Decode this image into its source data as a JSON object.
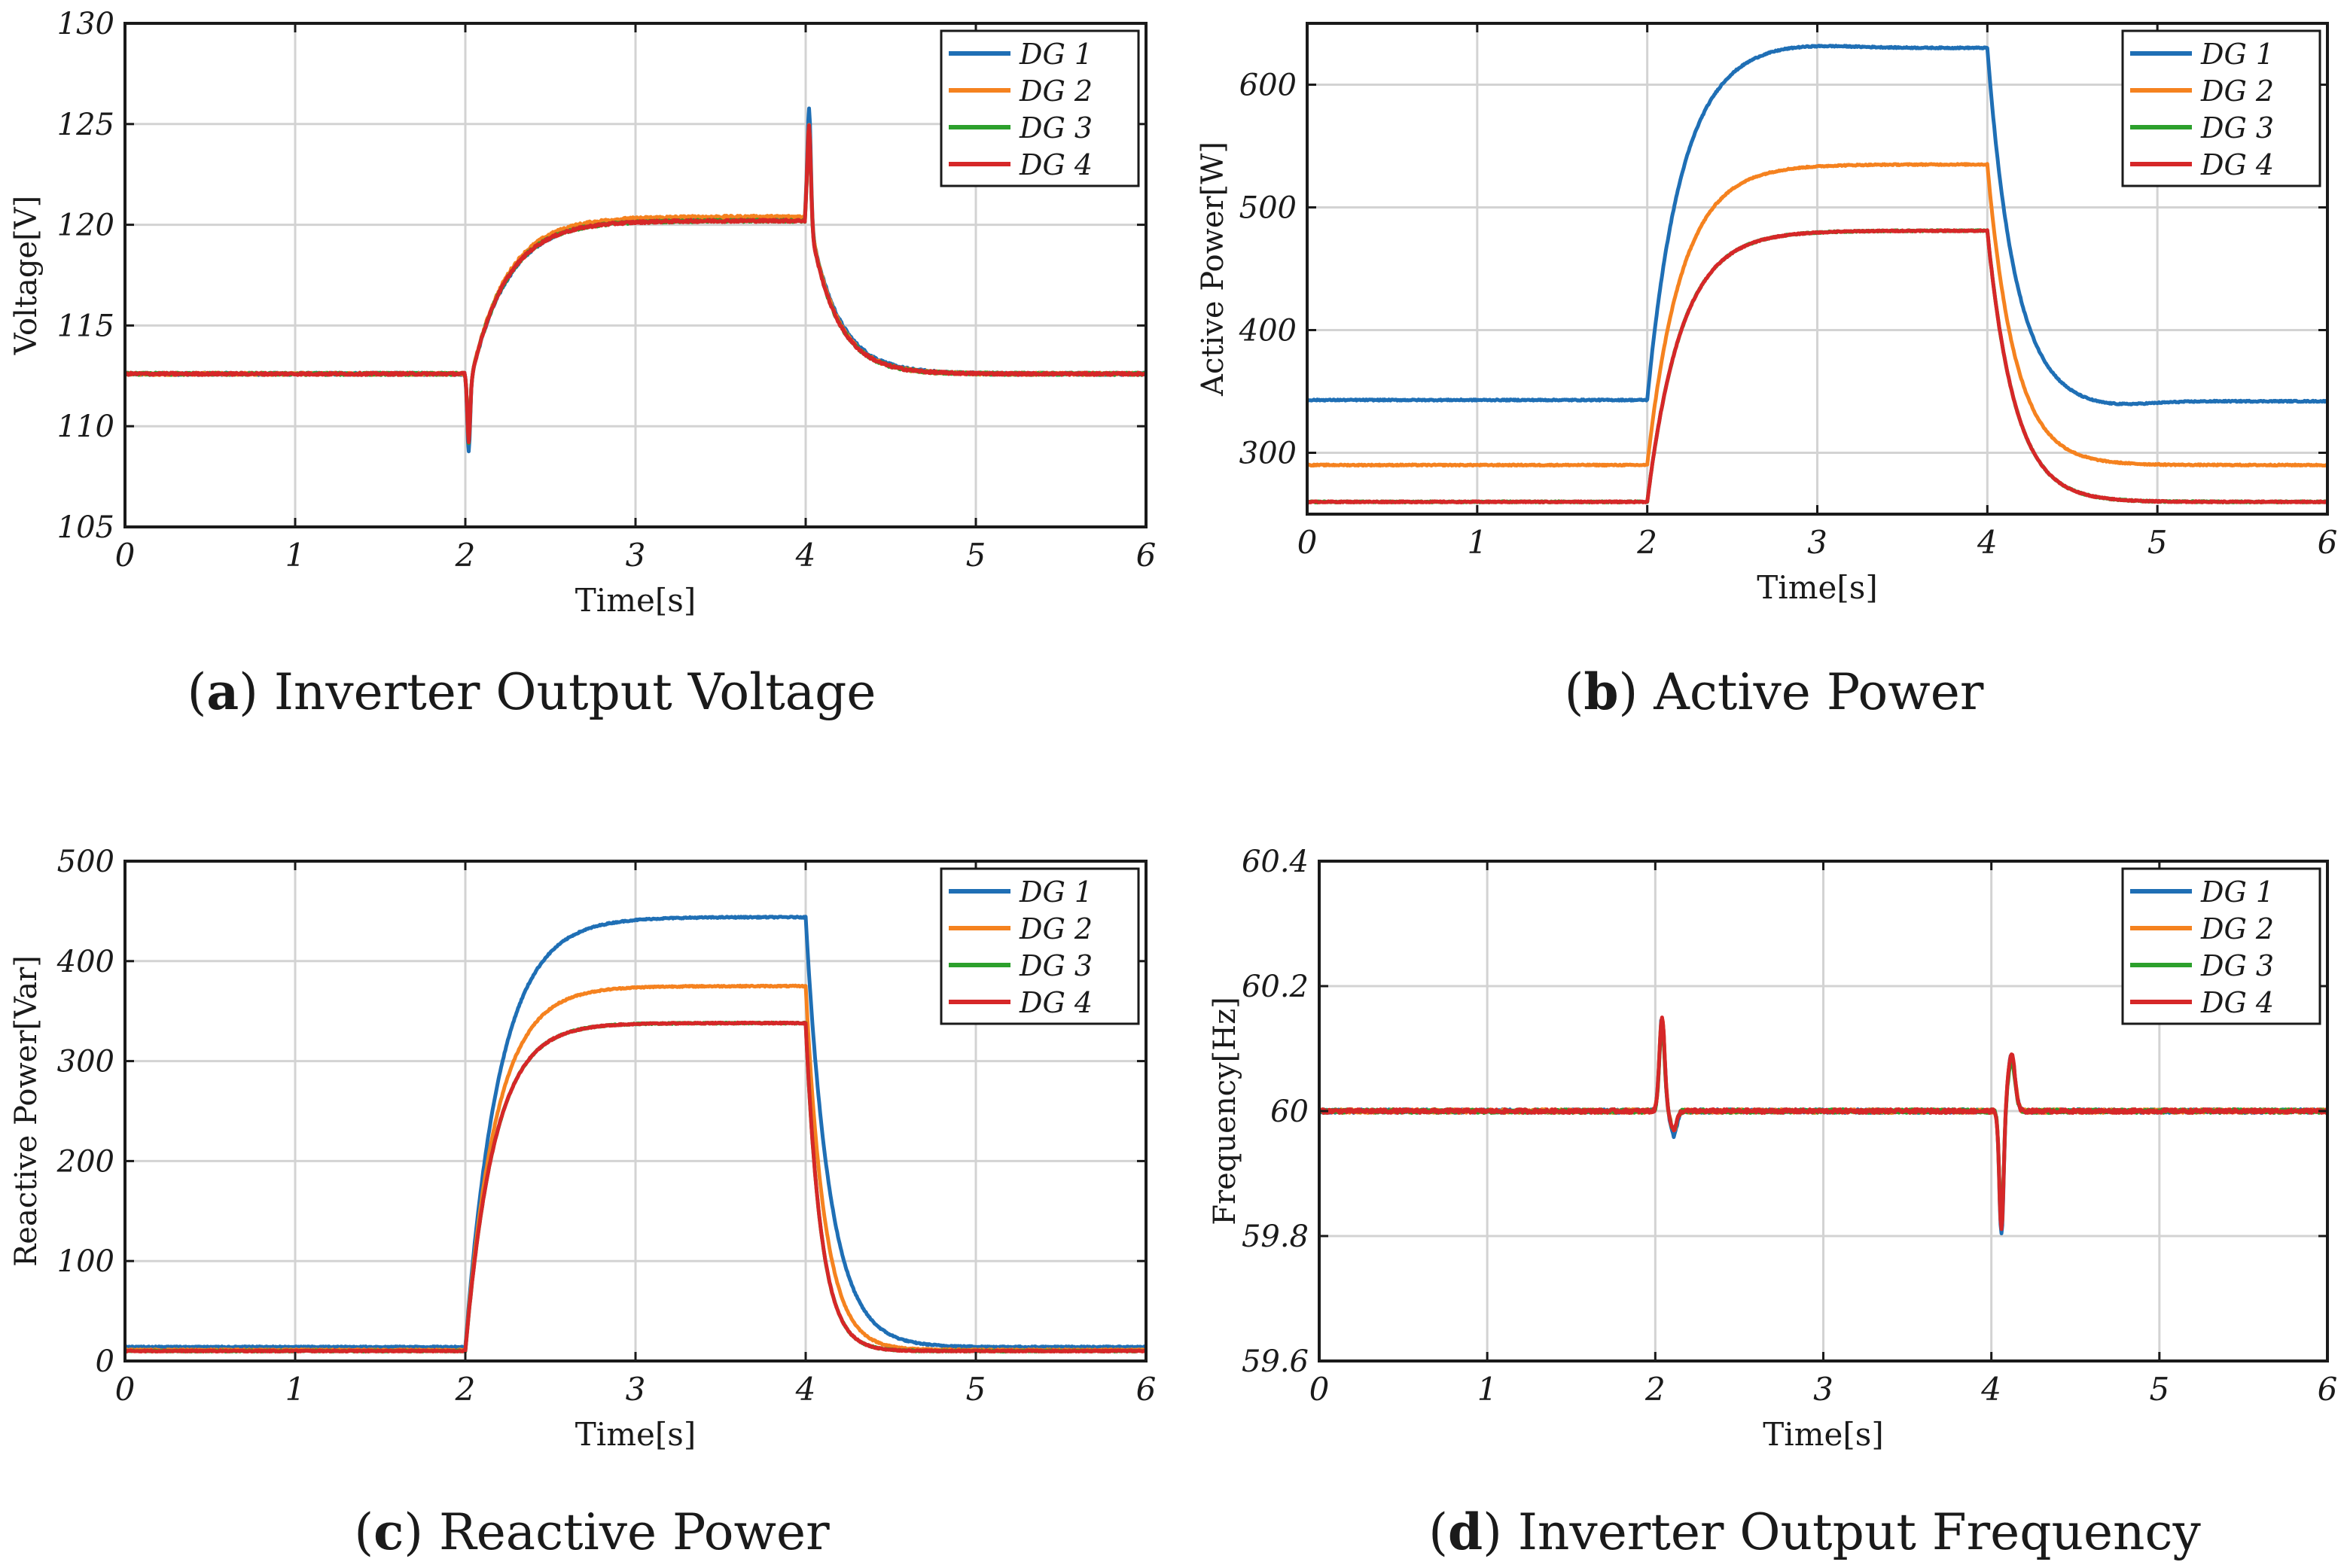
{
  "colors": {
    "dg1": "#1f6fb5",
    "dg2": "#f5821f",
    "dg3": "#2ca02c",
    "dg4": "#d62728",
    "grid": "#d3d3d3",
    "axis": "#1a1a1a"
  },
  "captions": [
    {
      "letter": "a",
      "text": "Inverter Output Voltage"
    },
    {
      "letter": "b",
      "text": "Active Power"
    },
    {
      "letter": "c",
      "text": "Reactive Power"
    },
    {
      "letter": "d",
      "text": "Inverter Output Frequency"
    }
  ],
  "chart_data": [
    {
      "type": "line",
      "id": "a",
      "title": "Inverter Output Voltage",
      "xlabel": "Time[s]",
      "ylabel": "Voltage[V]",
      "xlim": [
        0,
        6
      ],
      "ylim": [
        105,
        130
      ],
      "xticks": [
        0,
        1,
        2,
        3,
        4,
        5,
        6
      ],
      "xtick_labels": [
        "0",
        "1",
        "2",
        "3",
        "4",
        "5",
        "6"
      ],
      "yticks": [
        105,
        110,
        115,
        120,
        125,
        130
      ],
      "ytick_labels": [
        "105",
        "110",
        "115",
        "120",
        "125",
        "130"
      ],
      "grid": true,
      "legend": "top-right",
      "series": [
        {
          "name": "DG 1",
          "key": "dg1",
          "pre": 112.6,
          "high": 120.3,
          "post": 112.6,
          "tau_up": 0.22,
          "tau_dn": 0.17,
          "dip1": 108.7,
          "peak2": 125.8
        },
        {
          "name": "DG 2",
          "key": "dg2",
          "pre": 112.6,
          "high": 120.4,
          "post": 112.6,
          "tau_up": 0.21,
          "tau_dn": 0.16,
          "dip1": 109.3,
          "peak2": 125.0
        },
        {
          "name": "DG 3",
          "key": "dg3",
          "pre": 112.6,
          "high": 120.2,
          "post": 112.6,
          "tau_up": 0.21,
          "tau_dn": 0.16,
          "dip1": 109.2,
          "peak2": 124.7
        },
        {
          "name": "DG 4",
          "key": "dg4",
          "pre": 112.6,
          "high": 120.2,
          "post": 112.6,
          "tau_up": 0.21,
          "tau_dn": 0.16,
          "dip1": 109.2,
          "peak2": 124.9
        }
      ]
    },
    {
      "type": "line",
      "id": "b",
      "title": "Active Power",
      "xlabel": "Time[s]",
      "ylabel": "Active Power[W]",
      "xlim": [
        0,
        6
      ],
      "ylim": [
        250,
        650
      ],
      "xticks": [
        0,
        1,
        2,
        3,
        4,
        5,
        6
      ],
      "xtick_labels": [
        "0",
        "1",
        "2",
        "3",
        "4",
        "5",
        "6"
      ],
      "yticks": [
        300,
        400,
        500,
        600
      ],
      "ytick_labels": [
        "300",
        "400",
        "500",
        "600"
      ],
      "grid": true,
      "legend": "top-right",
      "series": [
        {
          "name": "DG 1",
          "key": "dg1",
          "pre": 343,
          "high": 630,
          "overshoot": 634,
          "post": 342,
          "undershoot": 337,
          "tau_up": 0.2,
          "tau_dn": 0.16
        },
        {
          "name": "DG 2",
          "key": "dg2",
          "pre": 290,
          "high": 535,
          "post": 290,
          "tau_up": 0.2,
          "tau_dn": 0.16
        },
        {
          "name": "DG 3",
          "key": "dg3",
          "pre": 260,
          "high": 481,
          "post": 260,
          "tau_up": 0.2,
          "tau_dn": 0.16
        },
        {
          "name": "DG 4",
          "key": "dg4",
          "pre": 260,
          "high": 481,
          "post": 260,
          "tau_up": 0.2,
          "tau_dn": 0.16
        }
      ]
    },
    {
      "type": "line",
      "id": "c",
      "title": "Reactive Power",
      "xlabel": "Time[s]",
      "ylabel": "Reactive Power[Var]",
      "xlim": [
        0,
        6
      ],
      "ylim": [
        0,
        500
      ],
      "xticks": [
        0,
        1,
        2,
        3,
        4,
        5,
        6
      ],
      "xtick_labels": [
        "0",
        "1",
        "2",
        "3",
        "4",
        "5",
        "6"
      ],
      "yticks": [
        0,
        100,
        200,
        300,
        400,
        500
      ],
      "ytick_labels": [
        "0",
        "100",
        "200",
        "300",
        "400",
        "500"
      ],
      "grid": true,
      "legend": "top-right",
      "series": [
        {
          "name": "DG 1",
          "key": "dg1",
          "pre": 14,
          "high": 444,
          "post": 14,
          "tau_up": 0.2,
          "tau_dn": 0.14
        },
        {
          "name": "DG 2",
          "key": "dg2",
          "pre": 11,
          "high": 375,
          "post": 11,
          "tau_up": 0.18,
          "tau_dn": 0.11
        },
        {
          "name": "DG 3",
          "key": "dg3",
          "pre": 10,
          "high": 338,
          "post": 10,
          "tau_up": 0.17,
          "tau_dn": 0.09
        },
        {
          "name": "DG 4",
          "key": "dg4",
          "pre": 10,
          "high": 338,
          "post": 10,
          "tau_up": 0.17,
          "tau_dn": 0.09
        }
      ]
    },
    {
      "type": "line",
      "id": "d",
      "title": "Inverter Output Frequency",
      "xlabel": "Time[s]",
      "ylabel": "Frequency[Hz]",
      "xlim": [
        0,
        6
      ],
      "ylim": [
        59.6,
        60.4
      ],
      "xticks": [
        0,
        1,
        2,
        3,
        4,
        5,
        6
      ],
      "xtick_labels": [
        "0",
        "1",
        "2",
        "3",
        "4",
        "5",
        "6"
      ],
      "yticks": [
        59.6,
        59.8,
        60.0,
        60.2,
        60.4
      ],
      "ytick_labels": [
        "59.6",
        "59.8",
        "60",
        "60.2",
        "60.4"
      ],
      "grid": true,
      "legend": "top-right",
      "series": [
        {
          "name": "DG 1",
          "key": "dg1",
          "base": 60.0,
          "spike1": 60.15,
          "dip1": 59.96,
          "dip2": 59.8,
          "spike2": 60.09
        },
        {
          "name": "DG 2",
          "key": "dg2",
          "base": 60.0,
          "spike1": 60.15,
          "dip1": 59.97,
          "dip2": 59.81,
          "spike2": 60.09
        },
        {
          "name": "DG 3",
          "key": "dg3",
          "base": 60.0,
          "spike1": 60.14,
          "dip1": 59.97,
          "dip2": 59.82,
          "spike2": 60.08
        },
        {
          "name": "DG 4",
          "key": "dg4",
          "base": 60.0,
          "spike1": 60.15,
          "dip1": 59.97,
          "dip2": 59.81,
          "spike2": 60.09
        }
      ]
    }
  ]
}
